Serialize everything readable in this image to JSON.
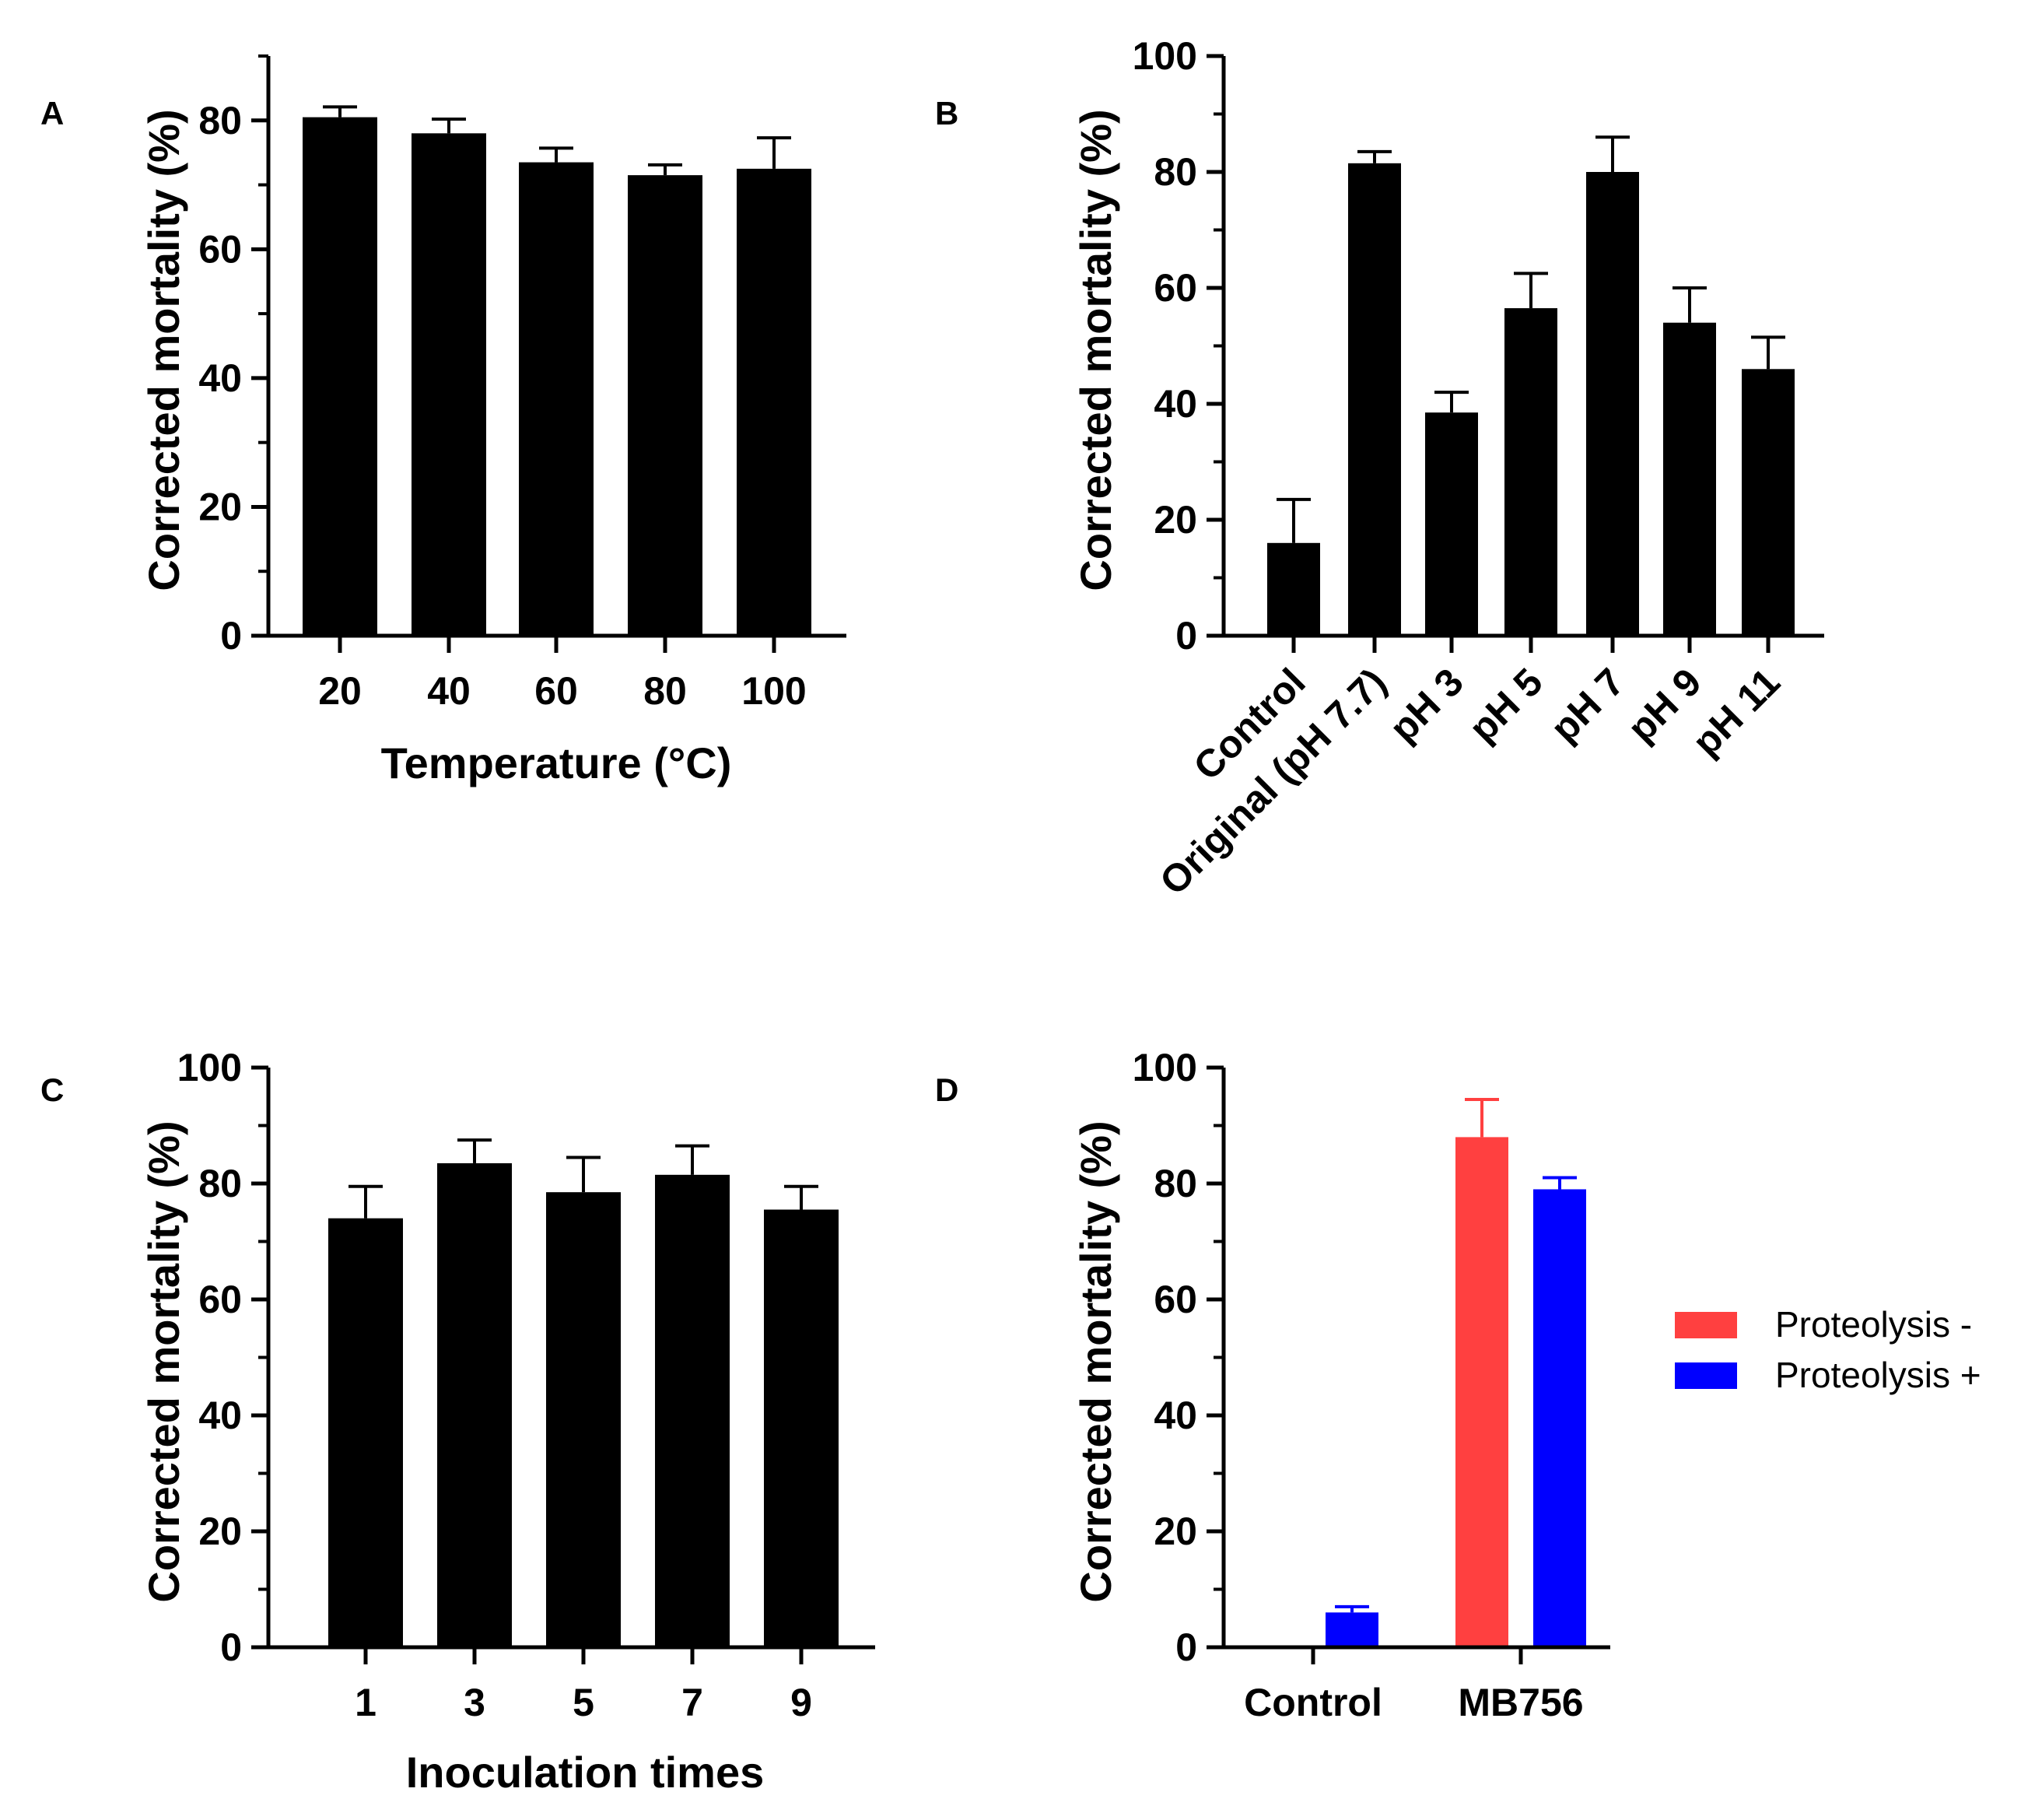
{
  "chart_data": [
    {
      "panel": "A",
      "type": "bar",
      "xlabel": "Temperature (°C)",
      "ylabel": "Corrected mortality (%)",
      "categories": [
        "20",
        "40",
        "60",
        "80",
        "100"
      ],
      "values": [
        80.5,
        78.0,
        73.5,
        71.5,
        72.5
      ],
      "errors": [
        1.6,
        2.2,
        2.2,
        1.6,
        4.8
      ],
      "ylim": [
        0,
        90
      ],
      "yticks": [
        0,
        20,
        40,
        60,
        80
      ],
      "ytick_labels": [
        "0",
        "20",
        "40",
        "60",
        "80"
      ],
      "colors": [
        "#000000"
      ]
    },
    {
      "panel": "B",
      "type": "bar",
      "xlabel": "",
      "ylabel": "Corrected mortality (%)",
      "categories": [
        "Control",
        "Original (pH 7.7)",
        "pH 3",
        "pH 5",
        "pH 7",
        "pH 9",
        "pH 11"
      ],
      "values": [
        16.0,
        81.5,
        38.5,
        56.5,
        80.0,
        54.0,
        46.0
      ],
      "errors": [
        7.5,
        2.0,
        3.5,
        6.0,
        6.0,
        6.0,
        5.5
      ],
      "ylim": [
        0,
        100
      ],
      "yticks": [
        0,
        20,
        40,
        60,
        80,
        100
      ],
      "ytick_labels": [
        "0",
        "20",
        "40",
        "60",
        "80",
        "100"
      ],
      "colors": [
        "#000000"
      ]
    },
    {
      "panel": "C",
      "type": "bar",
      "xlabel": "Inoculation times",
      "ylabel": "Corrected mortality (%)",
      "categories": [
        "1",
        "3",
        "5",
        "7",
        "9"
      ],
      "values": [
        74.0,
        83.5,
        78.5,
        81.5,
        75.5
      ],
      "errors": [
        5.5,
        4.0,
        6.0,
        5.0,
        4.0
      ],
      "ylim": [
        0,
        100
      ],
      "yticks": [
        0,
        20,
        40,
        60,
        80,
        100
      ],
      "ytick_labels": [
        "0",
        "20",
        "40",
        "60",
        "80",
        "100"
      ],
      "colors": [
        "#000000"
      ]
    },
    {
      "panel": "D",
      "type": "bar",
      "xlabel": "",
      "ylabel": "Corrected mortality (%)",
      "categories": [
        "Control",
        "MB756"
      ],
      "series": [
        {
          "name": "Proteolysis -",
          "color": "#ff4040",
          "values": [
            0,
            88.0
          ],
          "errors": [
            0,
            6.5
          ]
        },
        {
          "name": "Proteolysis +",
          "color": "#0000ff",
          "values": [
            6.0,
            79.0
          ],
          "errors": [
            1.0,
            2.0
          ]
        }
      ],
      "ylim": [
        0,
        100
      ],
      "yticks": [
        0,
        20,
        40,
        60,
        80,
        100
      ],
      "ytick_labels": [
        "0",
        "20",
        "40",
        "60",
        "80",
        "100"
      ],
      "legend": "right"
    }
  ]
}
